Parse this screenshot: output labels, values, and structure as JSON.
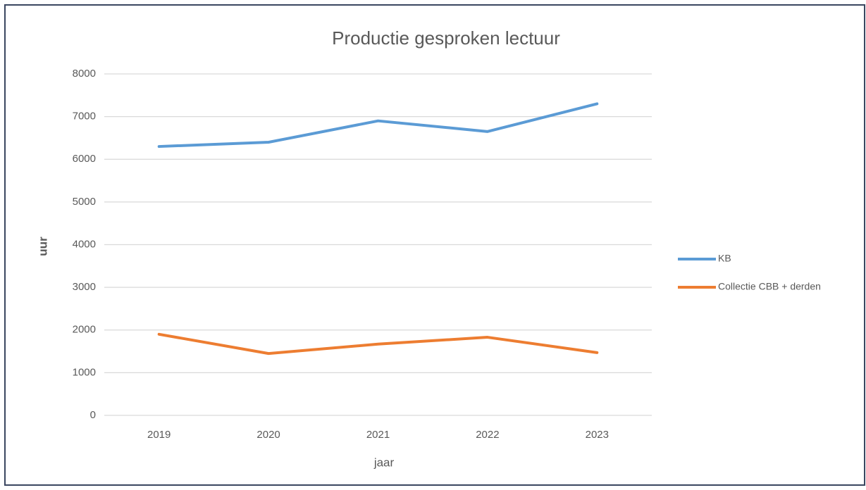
{
  "chart_data": {
    "type": "line",
    "title": "Productie gesproken lectuur",
    "x_label": "jaar",
    "y_label": "uur",
    "categories": [
      "2019",
      "2020",
      "2021",
      "2022",
      "2023"
    ],
    "series": [
      {
        "name": "KB",
        "color": "#5b9bd5",
        "values": [
          6300,
          6400,
          6900,
          6650,
          7300
        ]
      },
      {
        "name": "Collectie CBB + derden",
        "color": "#ed7d31",
        "values": [
          1900,
          1450,
          1670,
          1830,
          1470
        ]
      }
    ],
    "ylim": [
      0,
      8000
    ],
    "yticks": [
      0,
      1000,
      2000,
      3000,
      4000,
      5000,
      6000,
      7000,
      8000
    ],
    "grid": true,
    "legend": "right"
  }
}
